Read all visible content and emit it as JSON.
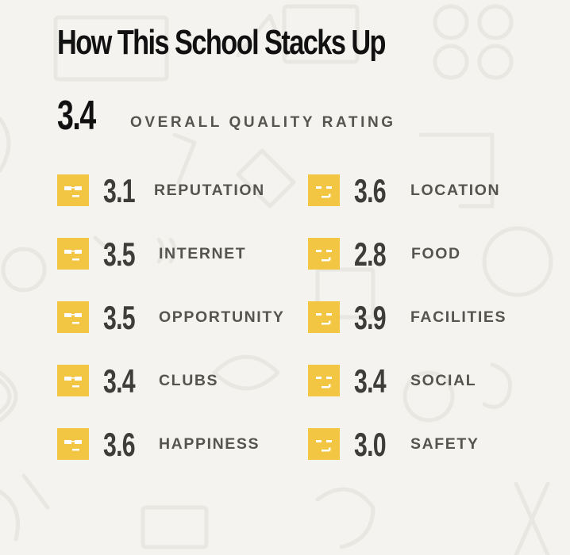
{
  "colors": {
    "background": "#f4f3ef",
    "badge": "#f2c642",
    "title": "#111111",
    "label": "#56544f",
    "score": "#3e3d3a"
  },
  "title": "How This School Stacks Up",
  "overall": {
    "score": "3.4",
    "label": "OVERALL QUALITY RATING"
  },
  "ratings": [
    {
      "category": "REPUTATION",
      "score": "3.1",
      "icon": "sunglasses-face-icon"
    },
    {
      "category": "LOCATION",
      "score": "3.6",
      "icon": "smirk-face-icon"
    },
    {
      "category": "INTERNET",
      "score": "3.5",
      "icon": "sunglasses-face-icon"
    },
    {
      "category": "FOOD",
      "score": "2.8",
      "icon": "smirk-face-icon"
    },
    {
      "category": "OPPORTUNITY",
      "score": "3.5",
      "icon": "sunglasses-face-icon"
    },
    {
      "category": "FACILITIES",
      "score": "3.9",
      "icon": "smirk-face-icon"
    },
    {
      "category": "CLUBS",
      "score": "3.4",
      "icon": "sunglasses-face-icon"
    },
    {
      "category": "SOCIAL",
      "score": "3.4",
      "icon": "smirk-face-icon"
    },
    {
      "category": "HAPPINESS",
      "score": "3.6",
      "icon": "sunglasses-face-icon"
    },
    {
      "category": "SAFETY",
      "score": "3.0",
      "icon": "smirk-face-icon"
    }
  ]
}
